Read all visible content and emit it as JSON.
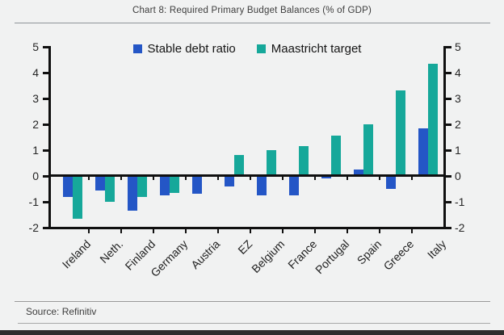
{
  "chart_data": {
    "type": "bar",
    "title": "Chart 8: Required Primary Budget Balances (% of GDP)",
    "categories": [
      "Ireland",
      "Neth.",
      "Finland",
      "Germany",
      "Austria",
      "EZ",
      "Belgium",
      "France",
      "Portugal",
      "Spain",
      "Greece",
      "Italy"
    ],
    "series": [
      {
        "name": "Stable debt ratio",
        "color": "#2456C6",
        "values": [
          -0.8,
          -0.55,
          -1.35,
          -0.75,
          -0.7,
          -0.4,
          -0.75,
          -0.75,
          -0.1,
          0.25,
          -0.5,
          1.85
        ]
      },
      {
        "name": "Maastricht target",
        "color": "#16A89A",
        "values": [
          -1.65,
          -1.0,
          -0.8,
          -0.65,
          0,
          0.8,
          1.0,
          1.15,
          1.55,
          2.0,
          3.3,
          4.35
        ]
      }
    ],
    "ylim": [
      -2,
      5
    ],
    "yticks": [
      5,
      4,
      3,
      2,
      1,
      0,
      -1,
      -2
    ],
    "xlabel": "",
    "ylabel": "",
    "grid": false,
    "legend_position": "top-center",
    "axes": "dual-y-labels",
    "colors": {
      "axis": "#101010",
      "background": "#f1f2f2"
    }
  },
  "footer": {
    "source": "Source: Refinitiv"
  }
}
